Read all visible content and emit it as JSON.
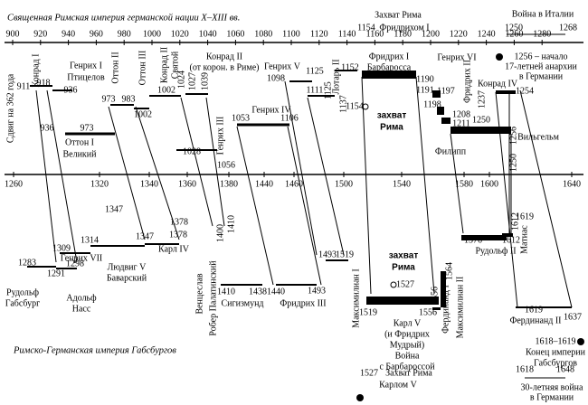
{
  "top_axis": [
    "900",
    "920",
    "940",
    "960",
    "980",
    "1000",
    "1020",
    "1040",
    "1060",
    "1080",
    "1100",
    "1120",
    "1140",
    "1160",
    "1180",
    "1200",
    "1220",
    "1240",
    "1260",
    "1280"
  ],
  "bottom_axis": [
    "1260",
    "1320",
    "1340",
    "1360",
    "1380",
    "1440",
    "1460",
    "1500",
    "1540",
    "1580",
    "1600",
    "1640"
  ],
  "labels": [
    "Священная Римская империя германской нации X–XIII вв.",
    "Захват Рима",
    "1154",
    "Фридрихом I",
    "Война в Италии",
    "1250",
    "1268",
    "Сдвиг на 362 года",
    "Конрад I",
    "911",
    "918",
    "Генрих I",
    "Птицелов",
    "936",
    "Оттон I",
    "Великий",
    "936",
    "973",
    "Оттон II",
    "973",
    "983",
    "Оттон III",
    "1002",
    "Конрад II",
    "Святой",
    "1002",
    "1024",
    "1027",
    "1039",
    "Конрад II",
    "(от корон. в Риме)",
    "Генрих III",
    "1028",
    "1056",
    "Генрих V",
    "1098",
    "1125",
    "1111",
    "1125",
    "Лотарь II",
    "1137",
    "Генрих IV",
    "1053",
    "1106",
    "1152",
    "Фридрих I",
    "Барбаросса",
    "1154",
    "захват",
    "Рима",
    "Генрих VI",
    "1190",
    "1197",
    "1191",
    "1198",
    "1208",
    "1211",
    "Фридрих II",
    "1250",
    "Филипп",
    "Конрад IV",
    "1237",
    "1254",
    "1256",
    "Вильгельм",
    "1250",
    "1256 – начало",
    "17-летней анархии",
    "в Германии",
    "Генрих VII",
    "1309",
    "1314",
    "Карл IV",
    "1347",
    "1378",
    "1347",
    "1378",
    "Людвиг V",
    "Баварский",
    "1283",
    "1291",
    "1298",
    "Рудольф",
    "Габсбург",
    "Адольф",
    "Насс",
    "1400",
    "1410",
    "Венцеслав",
    "Робер Палатинский",
    "1410",
    "1438",
    "Сигизмунд",
    "1440",
    "Фридрих III",
    "1493",
    "1493",
    "1519",
    "захват",
    "Рима",
    "1527",
    "Максимилиан I",
    "1519",
    "1556",
    "Карл V",
    "(и Фридрих",
    "Мудрый)",
    "Война",
    "с Барбароссой",
    "1556",
    "1564",
    "Фердинанд I",
    "Максимилиан II",
    "1576",
    "1612",
    "Рудольф II",
    "1612",
    "1619",
    "Матиас",
    "1619",
    "Фердинанд II",
    "1637",
    "Римско-Германская империя Габсбургов",
    "1618–1619",
    "Конец империи",
    "Габсбургов",
    "1618",
    "1648",
    "30-летняя война",
    "в Германии",
    "1527",
    "Захват Рима",
    "Карлом V"
  ]
}
